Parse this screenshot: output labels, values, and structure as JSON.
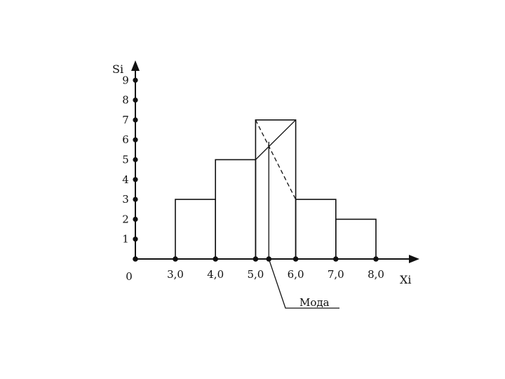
{
  "chart_data": {
    "type": "bar",
    "subtype": "histogram",
    "ylabel": "Si",
    "xlabel": "Xi",
    "origin_label": "0",
    "bins": [
      {
        "from": 3.0,
        "to": 4.0,
        "value": 3
      },
      {
        "from": 4.0,
        "to": 5.0,
        "value": 5
      },
      {
        "from": 5.0,
        "to": 6.0,
        "value": 7
      },
      {
        "from": 6.0,
        "to": 7.0,
        "value": 3
      },
      {
        "from": 7.0,
        "to": 8.0,
        "value": 2
      }
    ],
    "x_ticks": [
      {
        "value": 3.0,
        "label": "3,0"
      },
      {
        "value": 4.0,
        "label": "4,0"
      },
      {
        "value": 5.0,
        "label": "5,0"
      },
      {
        "value": 6.0,
        "label": "6,0"
      },
      {
        "value": 7.0,
        "label": "7,0"
      },
      {
        "value": 8.0,
        "label": "8,0"
      }
    ],
    "y_ticks": [
      {
        "value": 1,
        "label": "1"
      },
      {
        "value": 2,
        "label": "2"
      },
      {
        "value": 3,
        "label": "3"
      },
      {
        "value": 4,
        "label": "4"
      },
      {
        "value": 5,
        "label": "5"
      },
      {
        "value": 6,
        "label": "6"
      },
      {
        "value": 7,
        "label": "7"
      },
      {
        "value": 8,
        "label": "8"
      },
      {
        "value": 9,
        "label": "9"
      }
    ],
    "xlim": [
      0,
      8.6
    ],
    "ylim": [
      0,
      9.6
    ],
    "grid": false,
    "mode": {
      "value": 5.33,
      "label": "Мода"
    },
    "colors": {
      "ink": "#111111",
      "background": "#ffffff"
    }
  }
}
